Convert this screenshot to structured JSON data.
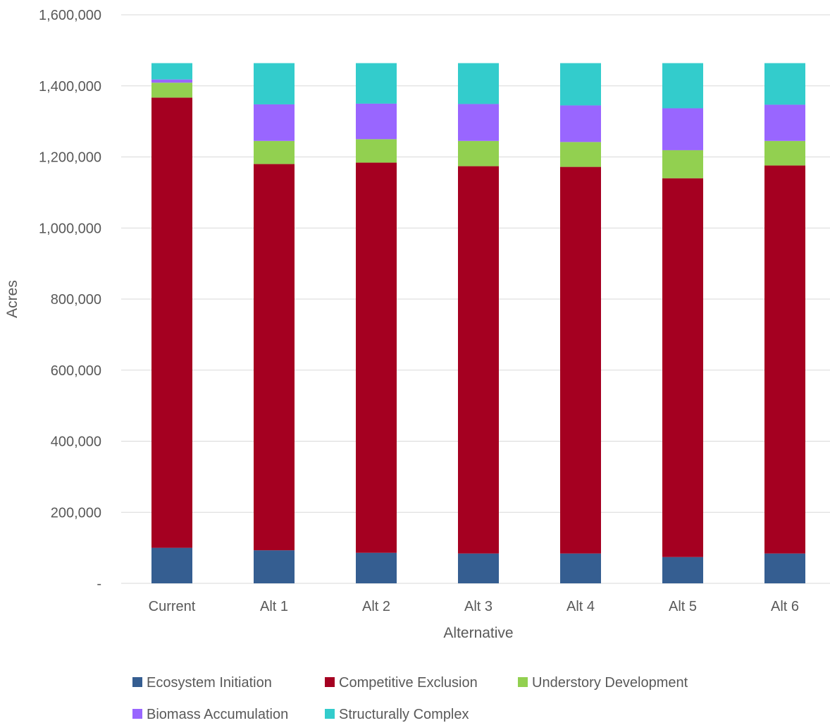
{
  "chart_data": {
    "type": "bar",
    "stacked": true,
    "title": "",
    "xlabel": "Alternative",
    "ylabel": "Acres",
    "ylim": [
      0,
      1600000
    ],
    "y_ticks": [
      0,
      200000,
      400000,
      600000,
      800000,
      1000000,
      1200000,
      1400000,
      1600000
    ],
    "y_tick_labels": [
      "-",
      "200,000",
      "400,000",
      "600,000",
      "800,000",
      "1,000,000",
      "1,200,000",
      "1,400,000",
      "1,600,000"
    ],
    "grid": true,
    "legend_position": "bottom",
    "categories": [
      "Current",
      "Alt 1",
      "Alt 2",
      "Alt 3",
      "Alt 4",
      "Alt 5",
      "Alt 6"
    ],
    "series": [
      {
        "name": "Ecosystem Initiation",
        "color": "#355e91",
        "values": [
          100000,
          93000,
          86000,
          84000,
          84000,
          74000,
          84000
        ]
      },
      {
        "name": "Competitive Exclusion",
        "color": "#a50021",
        "values": [
          1267000,
          1087000,
          1098000,
          1090000,
          1088000,
          1066000,
          1092000
        ]
      },
      {
        "name": "Understory Development",
        "color": "#92d050",
        "values": [
          42000,
          65000,
          66000,
          71000,
          70000,
          79000,
          69000
        ]
      },
      {
        "name": "Biomass Accumulation",
        "color": "#9966ff",
        "values": [
          9000,
          103000,
          100000,
          104000,
          103000,
          118000,
          102000
        ]
      },
      {
        "name": "Structurally Complex",
        "color": "#33cccc",
        "values": [
          46000,
          116000,
          114000,
          115000,
          119000,
          127000,
          117000
        ]
      }
    ]
  }
}
